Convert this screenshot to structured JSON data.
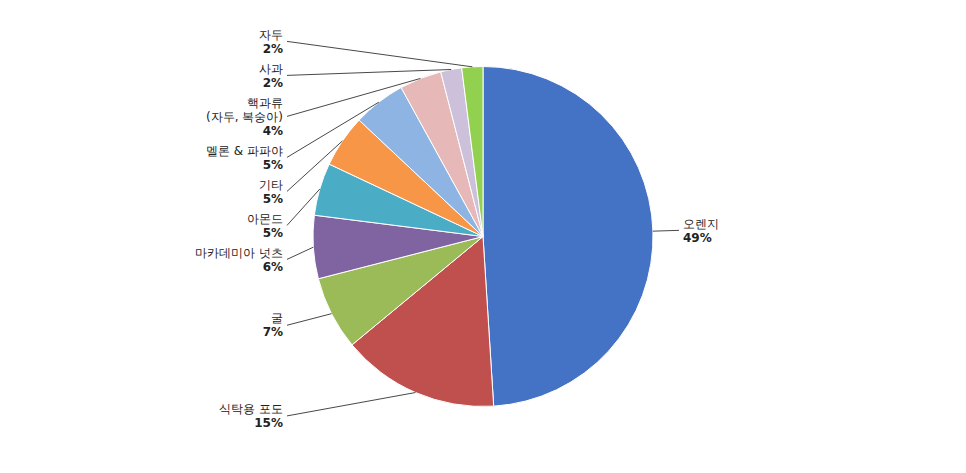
{
  "chart_data": {
    "type": "pie",
    "categories": [
      "오렌지",
      "식탁용 포도",
      "굴",
      "마카데미아 넛츠",
      "아몬드",
      "기타",
      "멜론 & 파파야",
      "핵과류\n(자두, 복숭아)",
      "사과",
      "자두"
    ],
    "values": [
      49,
      15,
      7,
      6,
      5,
      5,
      5,
      4,
      2,
      2
    ],
    "value_labels": [
      "49%",
      "15%",
      "7%",
      "6%",
      "5%",
      "5%",
      "5%",
      "4%",
      "2%",
      "2%"
    ],
    "colors": [
      "#4472C4",
      "#C0504D",
      "#9BBB59",
      "#8064A2",
      "#4BACC6",
      "#F79646",
      "#8DB4E2",
      "#E6B9B8",
      "#CCC0DA",
      "#92D050"
    ],
    "data_labels": true
  }
}
